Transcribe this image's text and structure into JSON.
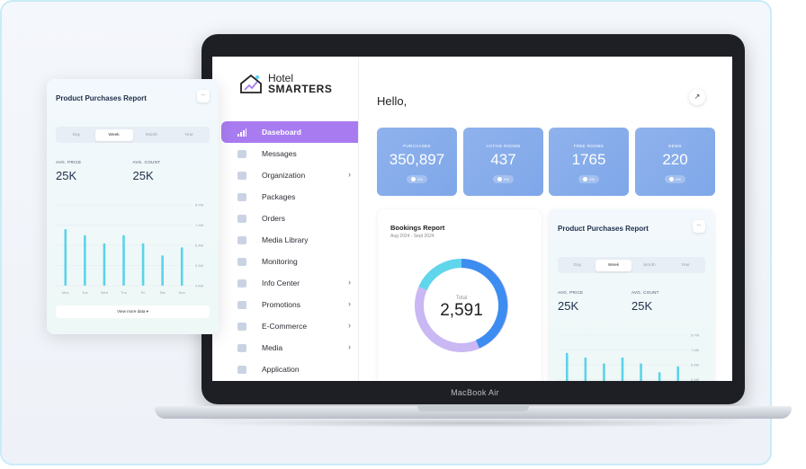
{
  "laptop": {
    "brand": "MacBook Air"
  },
  "app": {
    "logo_line1": "Hotel",
    "logo_line2": "SMARTERS"
  },
  "sidebar": {
    "items": [
      {
        "label": "Daseboard",
        "icon": "bar-chart-icon",
        "active": true,
        "chevron": false
      },
      {
        "label": "Messages",
        "icon": "mail-icon",
        "chevron": false
      },
      {
        "label": "Organization",
        "icon": "building-icon",
        "chevron": true
      },
      {
        "label": "Packages",
        "icon": "package-icon",
        "chevron": false
      },
      {
        "label": "Orders",
        "icon": "clipboard-icon",
        "chevron": false
      },
      {
        "label": "Media Library",
        "icon": "image-icon",
        "chevron": false
      },
      {
        "label": "Monitoring",
        "icon": "line-chart-icon",
        "chevron": false
      },
      {
        "label": "Info Center",
        "icon": "info-icon",
        "chevron": true
      },
      {
        "label": "Promotions",
        "icon": "document-icon",
        "chevron": true
      },
      {
        "label": "E-Commerce",
        "icon": "tag-icon",
        "chevron": true
      },
      {
        "label": "Media",
        "icon": "folder-icon",
        "chevron": true
      },
      {
        "label": "Application",
        "icon": "puzzle-icon",
        "chevron": false
      }
    ],
    "chevron_glyph": "›"
  },
  "main": {
    "greeting": "Hello,",
    "corner_glyph": "↗",
    "stats": [
      {
        "label": "PURCHASES",
        "value": "350,897",
        "pill": "0%"
      },
      {
        "label": "ACTIVE ROOMS",
        "value": "437",
        "pill": "0%"
      },
      {
        "label": "FREE ROOMS",
        "value": "1765",
        "pill": "0%"
      },
      {
        "label": "NEWS",
        "value": "220",
        "pill": "0%"
      }
    ],
    "bookings": {
      "title": "Bookings Report",
      "subtitle": "Aug 2024 - Sept 2024",
      "center_label": "Total",
      "center_value": "2,591",
      "colors": {
        "a": "#3d8cf0",
        "b": "#c9b8f3",
        "c": "#5fd6ec"
      }
    }
  },
  "ppr": {
    "title": "Product Purchases Report",
    "menu_glyph": "···",
    "segments": [
      "Day",
      "Week",
      "Month",
      "Year"
    ],
    "selected_segment": "Week",
    "avg_price_label": "AVG. PRICE",
    "avg_price_value": "25K",
    "avg_count_label": "AVG. COUNT",
    "avg_count_value": "25K",
    "view_more": "View more data ▾"
  },
  "chart_data": {
    "type": "bar",
    "categories": [
      "Mon",
      "Tue",
      "Wed",
      "Thu",
      "Fri",
      "Sat",
      "Sun"
    ],
    "values": [
      6.8,
      6.5,
      6.1,
      6.5,
      6.1,
      5.5,
      5.9
    ],
    "y_ticks": [
      "4 AM",
      "5 AM",
      "6 AM",
      "7 AM",
      "8 PM"
    ],
    "ylim": [
      4,
      8
    ],
    "bar_color": "#5bd3ea"
  }
}
